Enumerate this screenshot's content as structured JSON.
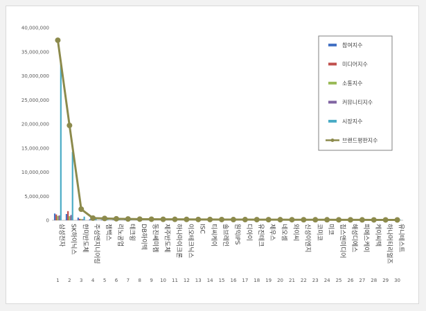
{
  "chart_data": {
    "type": "bar",
    "ylim": [
      0,
      40000000
    ],
    "yticks": [
      "0",
      "5,000,000",
      "10,000,000",
      "15,000,000",
      "20,000,000",
      "25,000,000",
      "30,000,000",
      "35,000,000",
      "40,000,000"
    ],
    "grid": false,
    "legend_position": "right",
    "categories": [
      "삼성전자",
      "SK하이닉스",
      "한미반도체",
      "주성엔지니어링",
      "젬백스",
      "리노공업",
      "테크윙",
      "DB하이텍",
      "동진쎄미켐",
      "제주반도체",
      "하나마이크론",
      "이오테크닉스",
      "ISC",
      "티씨케이",
      "솔브레인",
      "원익IPS",
      "디아이",
      "유진테크",
      "제우스",
      "네오셈",
      "와이씨",
      "신성이엔지",
      "코미코",
      "미코",
      "칩스앤미디어",
      "해성디에스",
      "피에스케이",
      "케이씨텍",
      "하나머티리얼즈",
      "유니테스트"
    ],
    "index_labels": [
      "1",
      "2",
      "3",
      "4",
      "5",
      "6",
      "7",
      "8",
      "9",
      "10",
      "11",
      "12",
      "13",
      "14",
      "15",
      "16",
      "17",
      "18",
      "19",
      "20",
      "21",
      "22",
      "23",
      "24",
      "25",
      "26",
      "27",
      "28",
      "29",
      "30"
    ],
    "series": [
      {
        "name": "참여지수",
        "kind": "bar",
        "color": "#4472c4",
        "values": [
          1400000,
          1300000,
          550000,
          220000,
          110000,
          75000,
          65000,
          55000,
          50000,
          45000,
          42000,
          40000,
          38000,
          35000,
          33000,
          30000,
          28000,
          26000,
          24000,
          22000,
          20000,
          18000,
          17000,
          16000,
          15000,
          14000,
          13000,
          12000,
          11000,
          10000
        ]
      },
      {
        "name": "미디어지수",
        "kind": "bar",
        "color": "#c0504d",
        "values": [
          1200000,
          1900000,
          300000,
          120000,
          60000,
          40000,
          35000,
          30000,
          28000,
          25000,
          23000,
          22000,
          20000,
          19000,
          18000,
          17000,
          16000,
          15000,
          14000,
          13000,
          12000,
          11000,
          10000,
          9500,
          9000,
          8500,
          8000,
          7500,
          7000,
          6500
        ]
      },
      {
        "name": "소통지수",
        "kind": "bar",
        "color": "#9bbb59",
        "values": [
          900000,
          850000,
          260000,
          110000,
          55000,
          38000,
          33000,
          29000,
          27000,
          24000,
          22000,
          21000,
          19000,
          18000,
          17000,
          16000,
          15000,
          14000,
          13000,
          12000,
          11000,
          10500,
          10000,
          9500,
          9000,
          8500,
          8000,
          7500,
          7000,
          6500
        ]
      },
      {
        "name": "커뮤니티지수",
        "kind": "bar",
        "color": "#8064a2",
        "values": [
          1000000,
          1100000,
          230000,
          100000,
          50000,
          34000,
          30000,
          27000,
          25000,
          22000,
          20000,
          19000,
          18000,
          17000,
          16000,
          15000,
          14000,
          13000,
          12000,
          11000,
          10000,
          9500,
          9000,
          8500,
          8000,
          7500,
          7000,
          6500,
          6000,
          5500
        ]
      },
      {
        "name": "시장지수",
        "kind": "bar",
        "color": "#4bacc6",
        "values": [
          33200000,
          14200000,
          750000,
          210000,
          105000,
          70000,
          60000,
          50000,
          45000,
          40000,
          37000,
          35000,
          32000,
          30000,
          28000,
          26000,
          24000,
          22000,
          20000,
          18000,
          17000,
          16000,
          15000,
          14000,
          13000,
          12000,
          11000,
          10000,
          9000,
          8000
        ]
      },
      {
        "name": "브랜드평판지수",
        "kind": "line",
        "color": "#8c8a4c",
        "values": [
          37400000,
          19700000,
          2300000,
          450000,
          380000,
          310000,
          270000,
          240000,
          220000,
          200000,
          190000,
          180000,
          170000,
          160000,
          150000,
          140000,
          135000,
          130000,
          125000,
          120000,
          115000,
          110000,
          105000,
          100000,
          95000,
          90000,
          85000,
          80000,
          75000,
          70000
        ]
      }
    ]
  }
}
